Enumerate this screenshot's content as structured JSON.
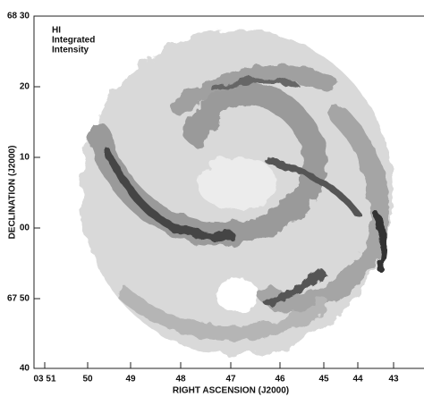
{
  "figure": {
    "annotation": [
      "HI",
      "Integrated",
      "Intensity"
    ],
    "y_axis_label": "DECLINATION (J2000)",
    "x_axis_label": "RIGHT ASCENSION (J2000)",
    "y_tick_labels": [
      "68 30",
      "20",
      "10",
      "00",
      "67 50",
      "40"
    ],
    "x_tick_labels": [
      "03 51",
      "50",
      "49",
      "48",
      "47",
      "46",
      "45",
      "44",
      "43"
    ]
  }
}
